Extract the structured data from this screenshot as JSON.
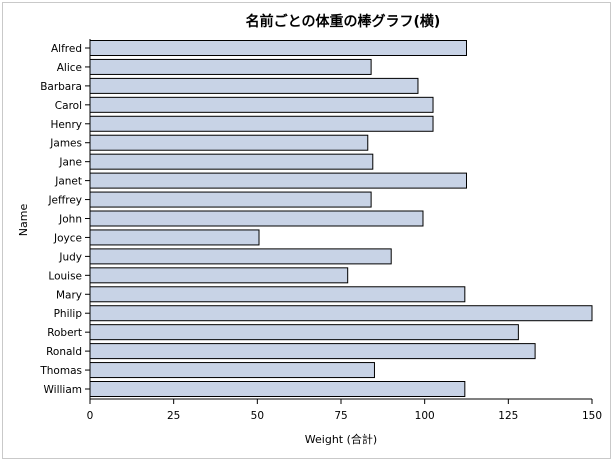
{
  "chart_data": {
    "type": "bar",
    "orientation": "horizontal",
    "title": "名前ごとの体重の棒グラフ(横)",
    "xlabel": "Weight (合計)",
    "ylabel": "Name",
    "xlim": [
      0,
      150
    ],
    "xticks": [
      0,
      25,
      50,
      75,
      100,
      125,
      150
    ],
    "categories": [
      "Alfred",
      "Alice",
      "Barbara",
      "Carol",
      "Henry",
      "James",
      "Jane",
      "Janet",
      "Jeffrey",
      "John",
      "Joyce",
      "Judy",
      "Louise",
      "Mary",
      "Philip",
      "Robert",
      "Ronald",
      "Thomas",
      "William"
    ],
    "values": [
      112.5,
      84,
      98,
      102.5,
      102.5,
      83,
      84.5,
      112.5,
      84,
      99.5,
      50.5,
      90,
      77,
      112,
      150,
      128,
      133,
      85,
      112
    ],
    "grid": false,
    "legend": "none",
    "colors": {
      "bar_fill": "#c8d3e6",
      "bar_stroke": "#000000",
      "axis": "#000000"
    }
  }
}
